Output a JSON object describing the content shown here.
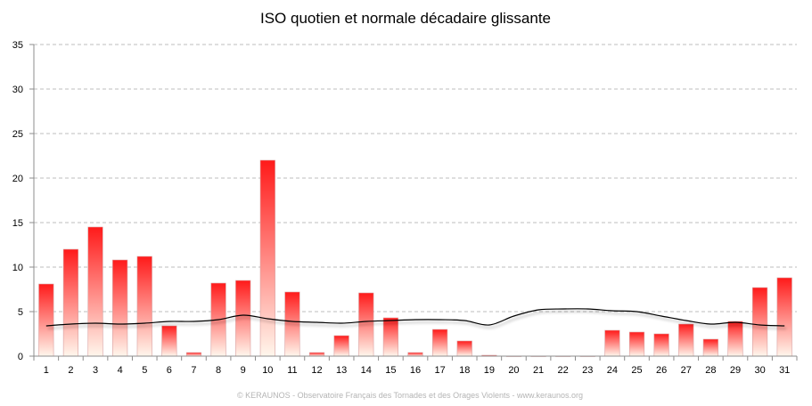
{
  "chart_data": {
    "type": "bar",
    "title": "ISO quotien et normale décadaire glissante",
    "xlabel": "",
    "ylabel": "",
    "ylim": [
      0,
      35
    ],
    "yticks": [
      "0",
      "5",
      "10",
      "15",
      "20",
      "25",
      "30",
      "35"
    ],
    "grid": true,
    "categories": [
      "1",
      "2",
      "3",
      "4",
      "5",
      "6",
      "7",
      "8",
      "9",
      "10",
      "11",
      "12",
      "13",
      "14",
      "15",
      "16",
      "17",
      "18",
      "19",
      "20",
      "21",
      "22",
      "23",
      "24",
      "25",
      "26",
      "27",
      "28",
      "29",
      "30",
      "31"
    ],
    "series": [
      {
        "type": "bar",
        "values": [
          8.1,
          12.0,
          14.5,
          10.8,
          11.2,
          3.4,
          0.4,
          8.2,
          8.5,
          22.0,
          7.2,
          0.4,
          2.3,
          7.1,
          4.3,
          0.4,
          3.0,
          1.7,
          0.1,
          0,
          0,
          0,
          0,
          2.9,
          2.7,
          2.5,
          3.6,
          1.9,
          3.9,
          7.7,
          8.8
        ],
        "color_top": "#ff1a1a",
        "color_bottom": "#fff6ec"
      },
      {
        "type": "line",
        "values": [
          3.4,
          3.6,
          3.7,
          3.6,
          3.7,
          3.9,
          3.9,
          4.1,
          4.6,
          4.2,
          3.9,
          3.8,
          3.7,
          3.9,
          4.0,
          4.1,
          4.1,
          4.0,
          3.5,
          4.5,
          5.2,
          5.3,
          5.3,
          5.1,
          5.0,
          4.5,
          4.0,
          3.6,
          3.8,
          3.5,
          3.4
        ],
        "color": "#000000"
      }
    ]
  },
  "footer": "© KERAUNOS - Observatoire Français des Tornades et des Orages Violents - www.keraunos.org"
}
